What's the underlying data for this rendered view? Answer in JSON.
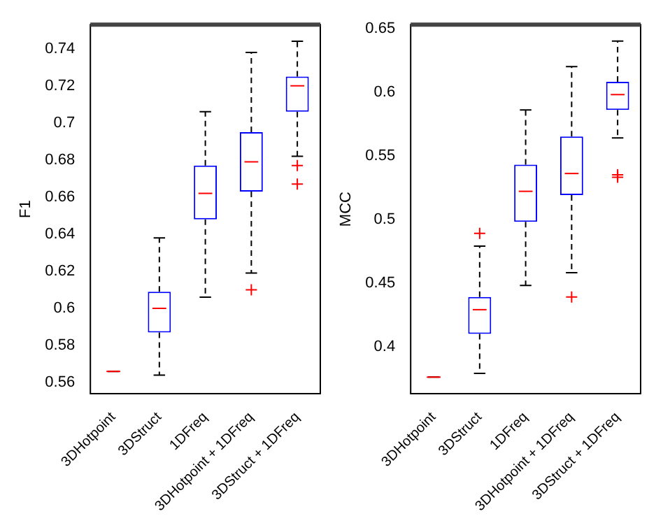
{
  "chart_data": [
    {
      "type": "box",
      "ylabel": "F1",
      "categories": [
        "3DHotpoint",
        "3DStruct",
        "1DFreq",
        "3DHotpoint + 1DFreq",
        "3DStruct + 1DFreq"
      ],
      "boxes": [
        {
          "low": 0.566,
          "q1": 0.566,
          "median": 0.566,
          "q3": 0.566,
          "high": 0.566
        },
        {
          "low": 0.564,
          "q1": 0.587,
          "median": 0.6,
          "q3": 0.609,
          "high": 0.638
        },
        {
          "low": 0.606,
          "q1": 0.648,
          "median": 0.662,
          "q3": 0.677,
          "high": 0.706
        },
        {
          "low": 0.619,
          "q1": 0.663,
          "median": 0.679,
          "q3": 0.695,
          "high": 0.738,
          "outliers": [
            0.61
          ]
        },
        {
          "low": 0.682,
          "q1": 0.706,
          "median": 0.72,
          "q3": 0.725,
          "high": 0.744,
          "outliers": [
            0.677,
            0.667
          ]
        }
      ],
      "ylim": [
        0.554,
        0.753
      ],
      "yticks": [
        0.56,
        0.58,
        0.6,
        0.62,
        0.64,
        0.66,
        0.68,
        0.7,
        0.72,
        0.74
      ]
    },
    {
      "type": "box",
      "ylabel": "MCC",
      "categories": [
        "3DHotpoint",
        "3DStruct",
        "1DFreq",
        "3DHotpoint + 1DFreq",
        "3DStruct + 1DFreq"
      ],
      "boxes": [
        {
          "low": 0.376,
          "q1": 0.376,
          "median": 0.376,
          "q3": 0.376,
          "high": 0.376
        },
        {
          "low": 0.379,
          "q1": 0.41,
          "median": 0.429,
          "q3": 0.439,
          "high": 0.479,
          "outliers": [
            0.489
          ]
        },
        {
          "low": 0.448,
          "q1": 0.498,
          "median": 0.522,
          "q3": 0.543,
          "high": 0.586
        },
        {
          "low": 0.458,
          "q1": 0.519,
          "median": 0.536,
          "q3": 0.565,
          "high": 0.62,
          "outliers": [
            0.439
          ]
        },
        {
          "low": 0.564,
          "q1": 0.586,
          "median": 0.598,
          "q3": 0.608,
          "high": 0.64,
          "outliers": [
            0.535,
            0.533
          ]
        }
      ],
      "ylim": [
        0.363,
        0.653
      ],
      "yticks": [
        0.4,
        0.45,
        0.5,
        0.55,
        0.6,
        0.65
      ]
    }
  ]
}
